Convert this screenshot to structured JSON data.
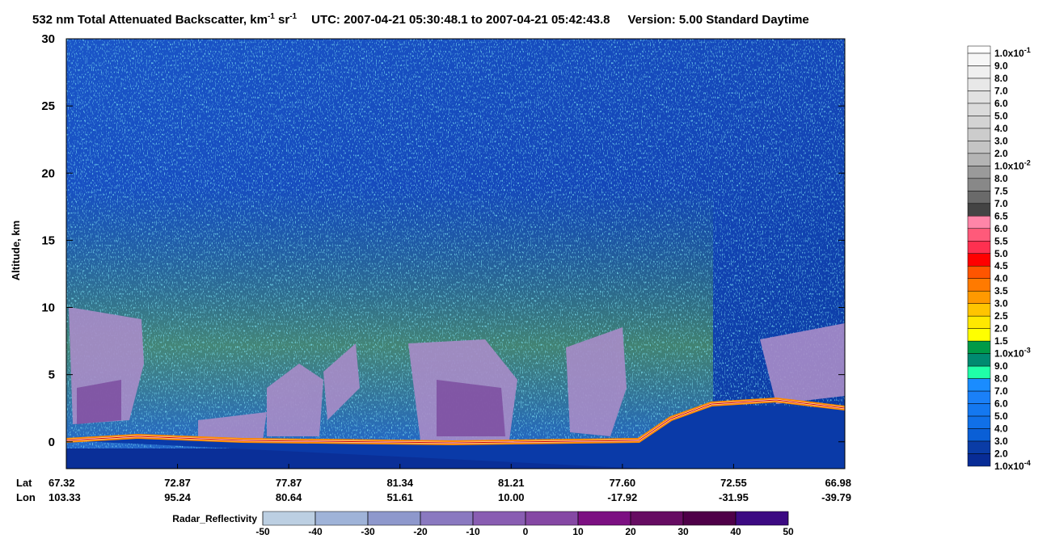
{
  "chart_data": {
    "type": "curtain",
    "title": [
      "532 nm Total Attenuated Backscatter, km",
      "-1",
      " sr",
      "-1",
      "UTC:  2007-04-21 05:30:48.1  to  2007-04-21 05:42:43.8",
      "Version: 5.00  Standard  Daytime"
    ],
    "ylabel": "Altitude, km",
    "ylim": [
      -2,
      30
    ],
    "yticks": [
      0,
      5,
      10,
      15,
      20,
      25,
      30
    ],
    "x_row_names": [
      "Lat",
      "Lon"
    ],
    "lat": [
      "67.32",
      "72.87",
      "77.87",
      "81.34",
      "81.21",
      "77.60",
      "72.55",
      "66.98"
    ],
    "lon": [
      "103.33",
      "95.24",
      "80.64",
      "51.61",
      "10.00",
      "-17.92",
      "-31.95",
      "-39.79"
    ],
    "colorbar": {
      "labels": [
        [
          "1.0x10",
          "-1"
        ],
        [
          "9.0"
        ],
        [
          "8.0"
        ],
        [
          "7.0"
        ],
        [
          "6.0"
        ],
        [
          "5.0"
        ],
        [
          "4.0"
        ],
        [
          "3.0"
        ],
        [
          "2.0"
        ],
        [
          "1.0x10",
          "-2"
        ],
        [
          "8.0"
        ],
        [
          "7.5"
        ],
        [
          "7.0"
        ],
        [
          "6.5"
        ],
        [
          "6.0"
        ],
        [
          "5.5"
        ],
        [
          "5.0"
        ],
        [
          "4.5"
        ],
        [
          "4.0"
        ],
        [
          "3.5"
        ],
        [
          "3.0"
        ],
        [
          "2.5"
        ],
        [
          "2.0"
        ],
        [
          "1.5"
        ],
        [
          "1.0x10",
          "-3"
        ],
        [
          "9.0"
        ],
        [
          "8.0"
        ],
        [
          "7.0"
        ],
        [
          "6.0"
        ],
        [
          "5.0"
        ],
        [
          "4.0"
        ],
        [
          "3.0"
        ],
        [
          "2.0"
        ],
        [
          "1.0x10",
          "-4"
        ]
      ],
      "colors": [
        "#ffffff",
        "#f6f6f6",
        "#efefef",
        "#e8e8e8",
        "#e1e1e1",
        "#dadada",
        "#d3d3d3",
        "#cccccc",
        "#c4c4c4",
        "#b4b4b4",
        "#9a9a9a",
        "#888888",
        "#6a6a6a",
        "#444444",
        "#ff85a8",
        "#ff5a7a",
        "#ff3050",
        "#ff0000",
        "#ff5500",
        "#ff7a00",
        "#ff9900",
        "#ffc400",
        "#ffe800",
        "#ffff00",
        "#009a48",
        "#008a70",
        "#20ffa8",
        "#1a8cff",
        "#1a80f8",
        "#1478f0",
        "#1070e8",
        "#0a5fd6",
        "#0a3ca6",
        "#082c96"
      ]
    },
    "radar_colorbar": {
      "title": "Radar_Reflectivity",
      "xlim": [
        -50,
        50
      ],
      "ticks": [
        -50,
        -40,
        -30,
        -20,
        -10,
        0,
        10,
        20,
        30,
        40,
        50
      ],
      "colors": [
        "#bccfe2",
        "#9fb3d8",
        "#8e98cc",
        "#8a79c0",
        "#895db2",
        "#8548a4",
        "#7c1082",
        "#660c62",
        "#4e0048",
        "#3c0a82"
      ]
    }
  }
}
